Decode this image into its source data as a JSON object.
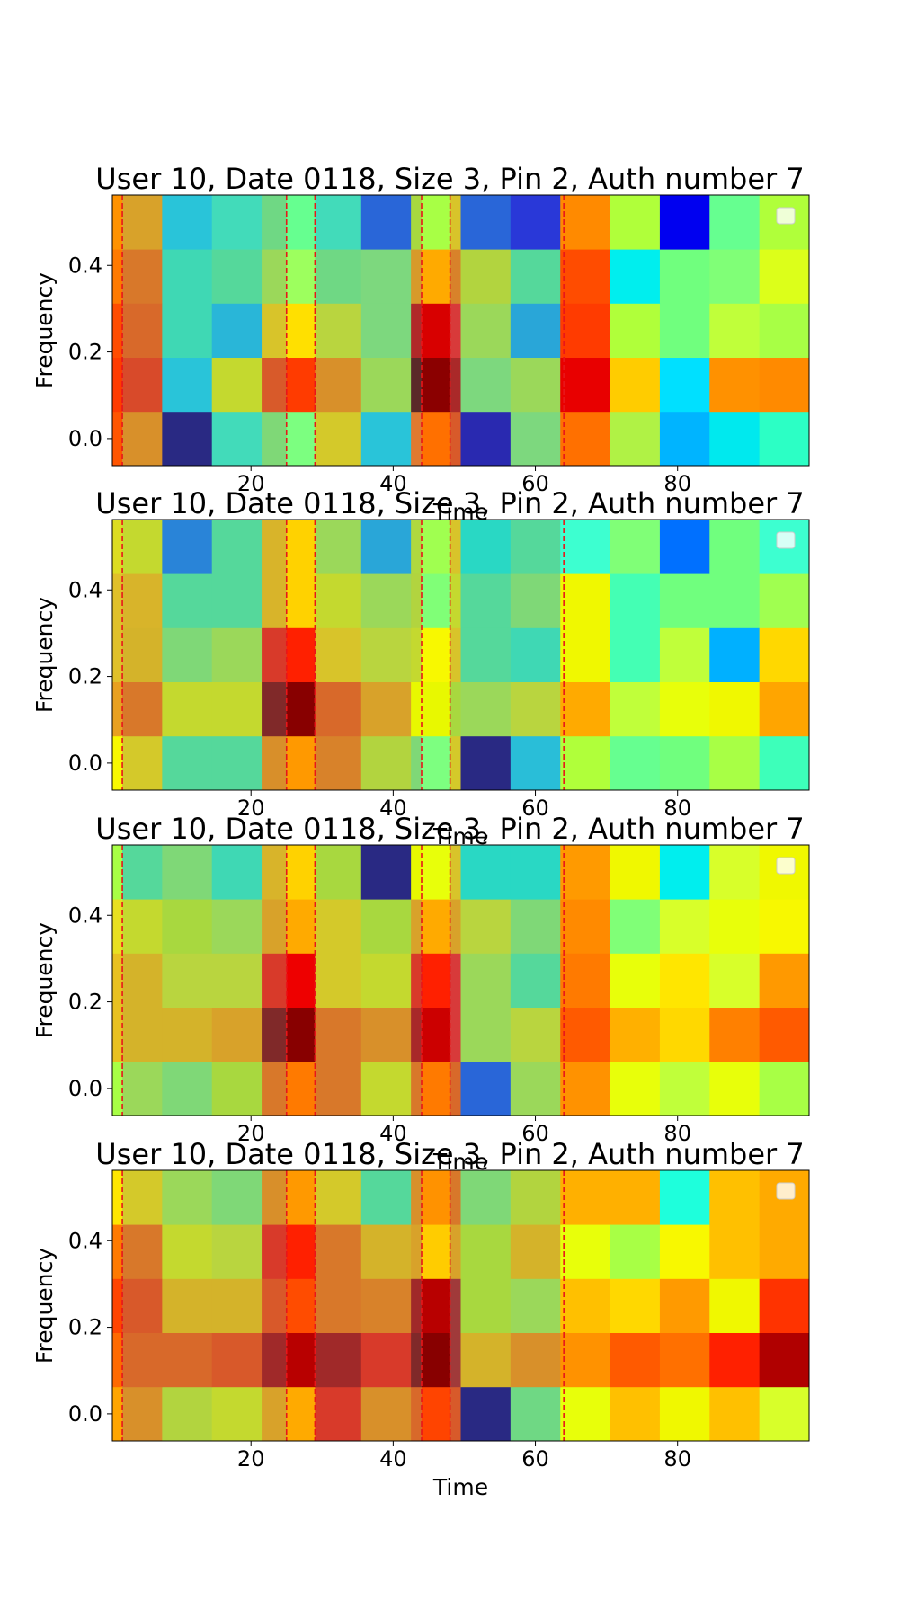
{
  "chart_data": [
    {
      "type": "heatmap",
      "title": "User 10, Date 0118, Size 3, Pin 2, Auth number 7",
      "xlabel": "Time",
      "ylabel": "Frequency",
      "x_ticks": [
        20,
        40,
        60,
        80
      ],
      "y_ticks": [
        0.0,
        0.2,
        0.4
      ],
      "y_tick_labels": [
        "0.0",
        "0.2",
        "0.4"
      ],
      "xlim": [
        0.5,
        98.5
      ],
      "ylim": [
        -0.0625,
        0.5625
      ],
      "legend_placement": "upper-right",
      "legend_entries": [],
      "vlines": [
        1.9,
        25.0,
        29.0,
        44.0,
        48.0,
        64.0
      ],
      "vline_color": "#e8161a",
      "x_edges": [
        0.5,
        1.9,
        7.5,
        14.5,
        21.5,
        25.0,
        29.0,
        35.5,
        42.5,
        44.0,
        48.0,
        49.5,
        56.5,
        63.5,
        70.5,
        77.5,
        84.5,
        91.5,
        98.5
      ],
      "y_edges": [
        -0.0625,
        0.0625,
        0.1875,
        0.3125,
        0.4375,
        0.5625
      ],
      "cell_colors": [
        [
          "#ff5500",
          "#d8902a",
          "#292983",
          "#42dbba",
          "#7fd877",
          "#7cff80",
          "#d4c92a",
          "#29c4d9",
          "#e07a30",
          "#ff7000",
          "#d85a2a",
          "#2929b0",
          "#7dd87e",
          "#ff7000",
          "#b0f245",
          "#00b4ff",
          "#00e9ee",
          "#2cffc5"
        ],
        [
          "#ff3b00",
          "#d84a2a",
          "#29c4d9",
          "#c4d92f",
          "#d85a2a",
          "#ff3b00",
          "#d8902a",
          "#9bd85a",
          "#5a2929",
          "#8b0000",
          "#aa2929",
          "#7dd87e",
          "#9bd85a",
          "#e80000",
          "#ffcc00",
          "#00e0ff",
          "#ff9100",
          "#ff8a00"
        ],
        [
          "#ff4c00",
          "#d8692a",
          "#3fd8b4",
          "#29b6d8",
          "#d8c42a",
          "#ffe000",
          "#b9d53f",
          "#7dd87e",
          "#b02929",
          "#d80000",
          "#d83a3a",
          "#9bd85a",
          "#29a6d8",
          "#ff3b00",
          "#b0ff3a",
          "#70ff7e",
          "#c0ff3a",
          "#a8ff45"
        ],
        [
          "#ff7a00",
          "#d8782a",
          "#3fd8b4",
          "#55d89b",
          "#9bd85a",
          "#9dff5e",
          "#6fd884",
          "#7dd87e",
          "#d89a2a",
          "#ffaa00",
          "#d8822a",
          "#b2d43f",
          "#55d89b",
          "#ff4c00",
          "#00eeee",
          "#70ff7e",
          "#80ff77",
          "#dcff1a"
        ],
        [
          "#ff9200",
          "#d8a22a",
          "#29c4d9",
          "#42dbba",
          "#6fd884",
          "#66ff90",
          "#42dbba",
          "#2966d8",
          "#a8d83f",
          "#a8ff45",
          "#d8c42a",
          "#2966d8",
          "#2938d8",
          "#ff8a00",
          "#b0ff3a",
          "#0000f0",
          "#66ff90",
          "#b0ff3a"
        ]
      ]
    },
    {
      "type": "heatmap",
      "title": "User 10, Date 0118, Size 3, Pin 2, Auth number 7",
      "xlabel": "Time",
      "ylabel": "Frequency",
      "x_ticks": [
        20,
        40,
        60,
        80
      ],
      "y_ticks": [
        0.0,
        0.2,
        0.4
      ],
      "y_tick_labels": [
        "0.0",
        "0.2",
        "0.4"
      ],
      "xlim": [
        0.5,
        98.5
      ],
      "ylim": [
        -0.0625,
        0.5625
      ],
      "legend_placement": "upper-right",
      "legend_entries": [],
      "vlines": [
        1.9,
        25.0,
        29.0,
        44.0,
        48.0,
        64.0
      ],
      "vline_color": "#e8161a",
      "x_edges": [
        0.5,
        1.9,
        7.5,
        14.5,
        21.5,
        25.0,
        29.0,
        35.5,
        42.5,
        44.0,
        48.0,
        49.5,
        56.5,
        63.5,
        70.5,
        77.5,
        84.5,
        91.5,
        98.5
      ],
      "y_edges": [
        -0.0625,
        0.0625,
        0.1875,
        0.3125,
        0.4375,
        0.5625
      ],
      "cell_colors": [
        [
          "#f8f800",
          "#d4c92a",
          "#55d89b",
          "#55d89b",
          "#d88f2a",
          "#ff9900",
          "#d8822a",
          "#b2d43f",
          "#7fd877",
          "#7dff80",
          "#d4c92a",
          "#292983",
          "#29bed8",
          "#b0ff3a",
          "#66ff90",
          "#70ff7e",
          "#a8ff45",
          "#3dffba"
        ],
        [
          "#e8a020",
          "#d8782a",
          "#c4d92f",
          "#c4d92f",
          "#802929",
          "#880000",
          "#d8692a",
          "#d8a22a",
          "#e8f800",
          "#e8f800",
          "#a8d83f",
          "#9bd85a",
          "#b9d53f",
          "#ffaa00",
          "#c0ff3a",
          "#e8ff0a",
          "#f0f800",
          "#ffa500"
        ],
        [
          "#e0c02a",
          "#d4b32a",
          "#7fd877",
          "#9bd85a",
          "#d83a2a",
          "#ff2000",
          "#d8c42a",
          "#b9d53f",
          "#c4d92f",
          "#f8f800",
          "#d8c42a",
          "#55d89b",
          "#3fd8b4",
          "#f0f800",
          "#44ffb4",
          "#c0ff3a",
          "#00b0ff",
          "#ffd800"
        ],
        [
          "#e0c02a",
          "#d8b42a",
          "#55d89b",
          "#55d89b",
          "#d8b42a",
          "#ffd200",
          "#c4d92f",
          "#9bd85a",
          "#b2d43f",
          "#80ff77",
          "#c4d92f",
          "#55d89b",
          "#7fd877",
          "#f0f800",
          "#44ffb4",
          "#70ff7e",
          "#70ff7e",
          "#a0ff50"
        ],
        [
          "#dddd22",
          "#c4d92f",
          "#2984d8",
          "#55d89b",
          "#d8b42a",
          "#ffd200",
          "#9bd85a",
          "#29a6d8",
          "#b0d83f",
          "#a0ff50",
          "#d8c42a",
          "#29d8c4",
          "#55d89b",
          "#3dffd0",
          "#80ff77",
          "#0070ff",
          "#70ff7e",
          "#3dffd0"
        ]
      ]
    },
    {
      "type": "heatmap",
      "title": "User 10, Date 0118, Size 3, Pin 2, Auth number 7",
      "xlabel": "Time",
      "ylabel": "Frequency",
      "x_ticks": [
        20,
        40,
        60,
        80
      ],
      "y_ticks": [
        0.0,
        0.2,
        0.4
      ],
      "y_tick_labels": [
        "0.0",
        "0.2",
        "0.4"
      ],
      "xlim": [
        0.5,
        98.5
      ],
      "ylim": [
        -0.0625,
        0.5625
      ],
      "legend_placement": "upper-right",
      "legend_entries": [],
      "vlines": [
        1.9,
        25.0,
        29.0,
        44.0,
        48.0,
        64.0
      ],
      "vline_color": "#e8161a",
      "x_edges": [
        0.5,
        1.9,
        7.5,
        14.5,
        21.5,
        25.0,
        29.0,
        35.5,
        42.5,
        44.0,
        48.0,
        49.5,
        56.5,
        63.5,
        70.5,
        77.5,
        84.5,
        91.5,
        98.5
      ],
      "y_edges": [
        -0.0625,
        0.0625,
        0.1875,
        0.3125,
        0.4375,
        0.5625
      ],
      "cell_colors": [
        [
          "#a8ff45",
          "#9bd85a",
          "#7fd877",
          "#a8d83f",
          "#d8782a",
          "#ff7a00",
          "#d8782a",
          "#c4d92f",
          "#d8782a",
          "#ff7a00",
          "#d8692a",
          "#2966d8",
          "#9bd85a",
          "#ff9200",
          "#e8ff0a",
          "#c0ff3a",
          "#e8ff0a",
          "#a8ff45"
        ],
        [
          "#e8c020",
          "#d4b32a",
          "#d4b32a",
          "#d8a22a",
          "#802929",
          "#880000",
          "#d8782a",
          "#d8902a",
          "#a82929",
          "#cc0000",
          "#d83a3a",
          "#9bd85a",
          "#b9d53f",
          "#ff5a00",
          "#ffb000",
          "#ffd800",
          "#ff8000",
          "#ff5a00"
        ],
        [
          "#e8c020",
          "#d4b32a",
          "#b9d53f",
          "#b9d53f",
          "#d83a2a",
          "#ee0000",
          "#d4c92a",
          "#c4d92f",
          "#d83a2a",
          "#ff2000",
          "#d83a3a",
          "#9bd85a",
          "#55d89b",
          "#ff7a00",
          "#e8ff0a",
          "#ffe600",
          "#d8ff2a",
          "#ff9900"
        ],
        [
          "#e8e020",
          "#c4d92f",
          "#a8d83f",
          "#9bd85a",
          "#d8a22a",
          "#ffaa00",
          "#d4c92a",
          "#a8d83f",
          "#d8a22a",
          "#ffaa00",
          "#d8a22a",
          "#b9d53f",
          "#7fd877",
          "#ff8a00",
          "#80ff77",
          "#d8ff2a",
          "#e8ff0a",
          "#f8f800"
        ],
        [
          "#a8ff45",
          "#55d89b",
          "#7fd877",
          "#3fd8b4",
          "#d8b42a",
          "#ffd200",
          "#a8d83f",
          "#292983",
          "#e8f800",
          "#e8ff0a",
          "#d8c42a",
          "#29d8c4",
          "#29d8c4",
          "#ff9a00",
          "#f0f800",
          "#00eeee",
          "#d8ff2a",
          "#f0f800"
        ]
      ]
    },
    {
      "type": "heatmap",
      "title": "User 10, Date 0118, Size 3, Pin 2, Auth number 7",
      "xlabel": "Time",
      "ylabel": "Frequency",
      "x_ticks": [
        20,
        40,
        60,
        80
      ],
      "y_ticks": [
        0.0,
        0.2,
        0.4
      ],
      "y_tick_labels": [
        "0.0",
        "0.2",
        "0.4"
      ],
      "xlim": [
        0.5,
        98.5
      ],
      "ylim": [
        -0.0625,
        0.5625
      ],
      "legend_placement": "upper-right",
      "legend_entries": [],
      "vlines": [
        1.9,
        25.0,
        29.0,
        44.0,
        48.0,
        64.0
      ],
      "vline_color": "#e8161a",
      "x_edges": [
        0.5,
        1.9,
        7.5,
        14.5,
        21.5,
        25.0,
        29.0,
        35.5,
        42.5,
        44.0,
        48.0,
        49.5,
        56.5,
        63.5,
        70.5,
        77.5,
        84.5,
        91.5,
        98.5
      ],
      "y_edges": [
        -0.0625,
        0.0625,
        0.1875,
        0.3125,
        0.4375,
        0.5625
      ],
      "cell_colors": [
        [
          "#ffa500",
          "#d8902a",
          "#b2d43f",
          "#c4d92f",
          "#d8a22a",
          "#ffaa00",
          "#d83a2a",
          "#d8902a",
          "#d8692a",
          "#ff4400",
          "#d85a2a",
          "#292983",
          "#6fd884",
          "#e8ff0a",
          "#ffc000",
          "#f0f800",
          "#ffc000",
          "#d8ff2a"
        ],
        [
          "#ff6a00",
          "#d8692a",
          "#d8692a",
          "#d8592a",
          "#a02929",
          "#b80000",
          "#a02929",
          "#d83a2a",
          "#802929",
          "#880000",
          "#a03a3a",
          "#d4b32a",
          "#d8902a",
          "#ff9200",
          "#ff5a00",
          "#ff7000",
          "#ff2000",
          "#b00000"
        ],
        [
          "#ff4400",
          "#d8592a",
          "#d4b32a",
          "#d4b32a",
          "#d8592a",
          "#ff4c00",
          "#d8782a",
          "#d8822a",
          "#a02929",
          "#b80000",
          "#a03a3a",
          "#a8d83f",
          "#9bd85a",
          "#ffc000",
          "#ffd800",
          "#ff9a00",
          "#f0f800",
          "#ff3300"
        ],
        [
          "#ff7a00",
          "#d8782a",
          "#c4d92f",
          "#b9d53f",
          "#d83a2a",
          "#ff2000",
          "#d8782a",
          "#d4b32a",
          "#d8a22a",
          "#ffcc00",
          "#d8a22a",
          "#a8d83f",
          "#d4b32a",
          "#e8ff0a",
          "#a8ff45",
          "#f8f800",
          "#ffc000",
          "#ffaa00"
        ],
        [
          "#ffe600",
          "#d4c92a",
          "#9bd85a",
          "#7fd877",
          "#d88f2a",
          "#ff9900",
          "#d4c92a",
          "#55d89b",
          "#d8902a",
          "#ff9200",
          "#d8782a",
          "#7fd877",
          "#b2d43f",
          "#ffb000",
          "#ffb000",
          "#1effdc",
          "#ffc000",
          "#ffaa00"
        ]
      ]
    }
  ]
}
